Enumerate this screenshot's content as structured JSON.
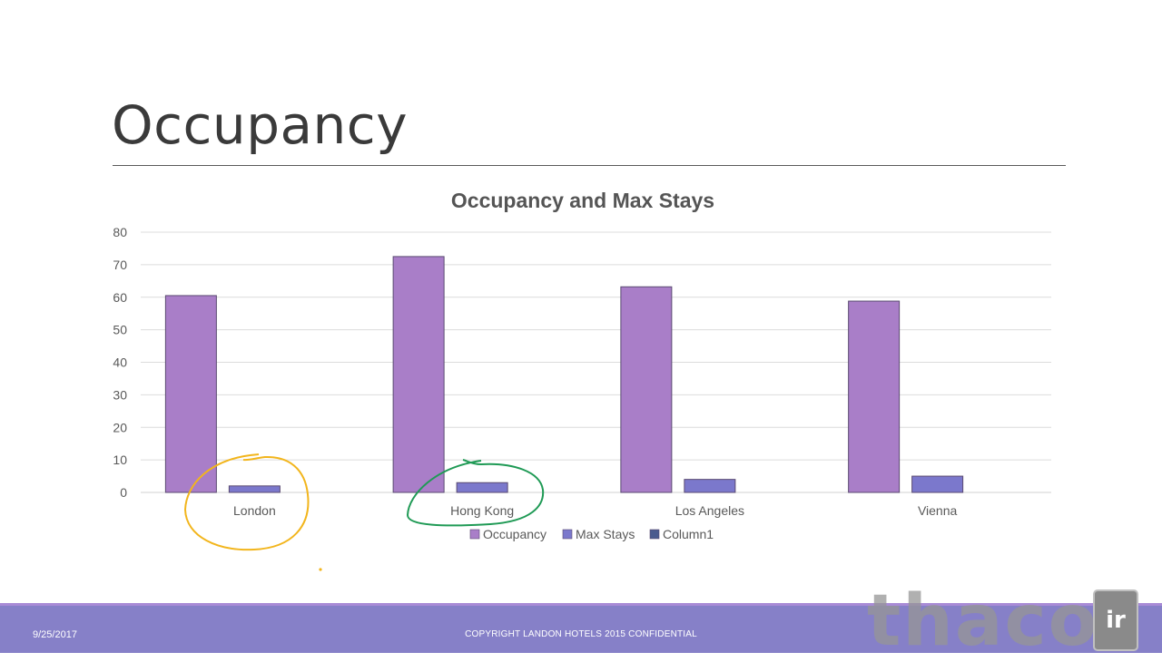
{
  "slide": {
    "title": "Occupancy"
  },
  "chart_data": {
    "type": "bar",
    "title": "Occupancy and Max Stays",
    "categories": [
      "London",
      "Hong Kong",
      "Los Angeles",
      "Vienna"
    ],
    "series": [
      {
        "name": "Occupancy",
        "values": [
          60.5,
          72.5,
          63.2,
          58.8
        ],
        "color": "#a97ec8"
      },
      {
        "name": "Max Stays",
        "values": [
          2,
          3,
          4,
          5
        ],
        "color": "#7b78cc"
      },
      {
        "name": "Column1",
        "values": [
          0,
          0,
          0,
          0
        ],
        "color": "#4a5a8e"
      }
    ],
    "ylim": [
      0,
      80
    ],
    "yticks": [
      0,
      10,
      20,
      30,
      40,
      50,
      60,
      70,
      80
    ],
    "xlabel": "",
    "ylabel": "",
    "grid": true,
    "legend_position": "bottom"
  },
  "footer": {
    "date": "9/25/2017",
    "copyright": "COPYRIGHT LANDON HOTELS 2015 CONFIDENTIAL"
  },
  "watermark": {
    "text": "thaco",
    "badge": "ir"
  },
  "annotations": {
    "london_circle_color": "#f2b51c",
    "hongkong_circle_color": "#1f9a55"
  }
}
